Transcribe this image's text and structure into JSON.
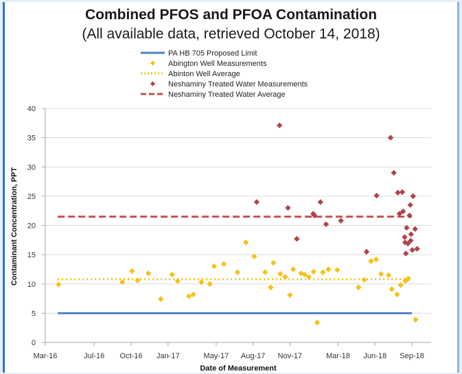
{
  "chart_data": {
    "type": "scatter",
    "title": "Combined PFOS and PFOA Contamination",
    "subtitle": "(All available data, retrieved October 14, 2018)",
    "xlabel": "Date of Measurement",
    "ylabel": "Contaminant Concentration, PPT",
    "ylim": [
      0,
      40
    ],
    "yticks": [
      0,
      5,
      10,
      15,
      20,
      25,
      30,
      35,
      40
    ],
    "xlim": [
      "2016-03-01",
      "2018-09-01"
    ],
    "xticks": [
      {
        "date": "2016-03-01",
        "label": "Mar-16"
      },
      {
        "date": "2016-07-01",
        "label": "Jul-16"
      },
      {
        "date": "2016-10-01",
        "label": "Oct-16"
      },
      {
        "date": "2017-01-01",
        "label": "Jan-17"
      },
      {
        "date": "2017-05-01",
        "label": "May-17"
      },
      {
        "date": "2017-08-01",
        "label": "Aug-17"
      },
      {
        "date": "2017-11-01",
        "label": "Nov-17"
      },
      {
        "date": "2018-03-01",
        "label": "Mar-18"
      },
      {
        "date": "2018-06-01",
        "label": "Jun-18"
      },
      {
        "date": "2018-09-01",
        "label": "Sep-18"
      }
    ],
    "grid": "horizontal",
    "legend_position": "top",
    "series": [
      {
        "name": "PA HB 705 Proposed Limit",
        "kind": "line",
        "style": "solid",
        "color": "#4f81c8",
        "value": 5,
        "x": [
          "2016-04-01",
          "2018-09-01"
        ]
      },
      {
        "name": "Abington Well Measurements",
        "kind": "points",
        "marker": "diamond",
        "color": "#f6c218",
        "points": [
          [
            "2016-04-03",
            9.9
          ],
          [
            "2016-09-09",
            10.3
          ],
          [
            "2016-10-03",
            12.2
          ],
          [
            "2016-10-17",
            10.6
          ],
          [
            "2016-11-13",
            11.8
          ],
          [
            "2016-12-14",
            7.4
          ],
          [
            "2017-01-11",
            11.6
          ],
          [
            "2017-01-25",
            10.5
          ],
          [
            "2017-02-22",
            7.9
          ],
          [
            "2017-03-05",
            8.2
          ],
          [
            "2017-03-25",
            10.3
          ],
          [
            "2017-04-15",
            10.0
          ],
          [
            "2017-04-26",
            13.0
          ],
          [
            "2017-05-20",
            13.4
          ],
          [
            "2017-06-23",
            12.0
          ],
          [
            "2017-07-14",
            17.1
          ],
          [
            "2017-08-04",
            14.7
          ],
          [
            "2017-08-31",
            12.0
          ],
          [
            "2017-09-14",
            9.4
          ],
          [
            "2017-09-21",
            13.6
          ],
          [
            "2017-10-08",
            11.7
          ],
          [
            "2017-10-20",
            11.2
          ],
          [
            "2017-11-01",
            8.1
          ],
          [
            "2017-11-09",
            12.5
          ],
          [
            "2017-11-29",
            11.8
          ],
          [
            "2017-12-08",
            11.6
          ],
          [
            "2017-12-18",
            11.2
          ],
          [
            "2017-12-30",
            12.1
          ],
          [
            "2018-01-08",
            3.4
          ],
          [
            "2018-01-22",
            12.0
          ],
          [
            "2018-02-05",
            12.5
          ],
          [
            "2018-02-27",
            12.4
          ],
          [
            "2018-04-21",
            9.4
          ],
          [
            "2018-05-05",
            10.7
          ],
          [
            "2018-05-22",
            13.9
          ],
          [
            "2018-06-04",
            14.2
          ],
          [
            "2018-06-16",
            11.7
          ],
          [
            "2018-07-05",
            11.5
          ],
          [
            "2018-07-13",
            9.1
          ],
          [
            "2018-07-26",
            8.2
          ],
          [
            "2018-08-04",
            9.8
          ],
          [
            "2018-08-16",
            10.5
          ],
          [
            "2018-08-23",
            10.9
          ],
          [
            "2018-09-10",
            3.9
          ]
        ]
      },
      {
        "name": "Abinton Well Average",
        "kind": "line",
        "style": "dotted",
        "color": "#f6c218",
        "value": 10.8,
        "x": [
          "2016-04-01",
          "2018-09-01"
        ]
      },
      {
        "name": "Neshaminy Treated Water Measurements",
        "kind": "points",
        "marker": "diamond",
        "color": "#b0444a",
        "points": [
          [
            "2017-08-10",
            24.0
          ],
          [
            "2017-10-06",
            37.1
          ],
          [
            "2017-10-27",
            23.0
          ],
          [
            "2017-11-18",
            17.7
          ],
          [
            "2017-12-29",
            22.0
          ],
          [
            "2018-01-01",
            21.7
          ],
          [
            "2018-01-16",
            24.0
          ],
          [
            "2018-01-30",
            20.2
          ],
          [
            "2018-03-08",
            20.8
          ],
          [
            "2018-05-11",
            15.5
          ],
          [
            "2018-06-05",
            25.1
          ],
          [
            "2018-07-10",
            35.0
          ],
          [
            "2018-07-18",
            29.0
          ],
          [
            "2018-07-28",
            25.6
          ],
          [
            "2018-08-01",
            22.0
          ],
          [
            "2018-08-08",
            25.7
          ],
          [
            "2018-08-10",
            22.4
          ],
          [
            "2018-08-14",
            18.0
          ],
          [
            "2018-08-15",
            17.1
          ],
          [
            "2018-08-17",
            15.2
          ],
          [
            "2018-08-19",
            19.6
          ],
          [
            "2018-08-22",
            16.9
          ],
          [
            "2018-08-26",
            21.7
          ],
          [
            "2018-08-28",
            23.5
          ],
          [
            "2018-08-29",
            17.4
          ],
          [
            "2018-08-30",
            18.5
          ],
          [
            "2018-09-02",
            15.8
          ],
          [
            "2018-09-04",
            25.0
          ],
          [
            "2018-09-09",
            19.4
          ],
          [
            "2018-09-14",
            16.0
          ]
        ]
      },
      {
        "name": "Neshaminy Treated Water Average",
        "kind": "line",
        "style": "dashed",
        "color": "#c0504d",
        "value": 21.5,
        "x": [
          "2016-04-01",
          "2018-09-01"
        ]
      }
    ]
  }
}
